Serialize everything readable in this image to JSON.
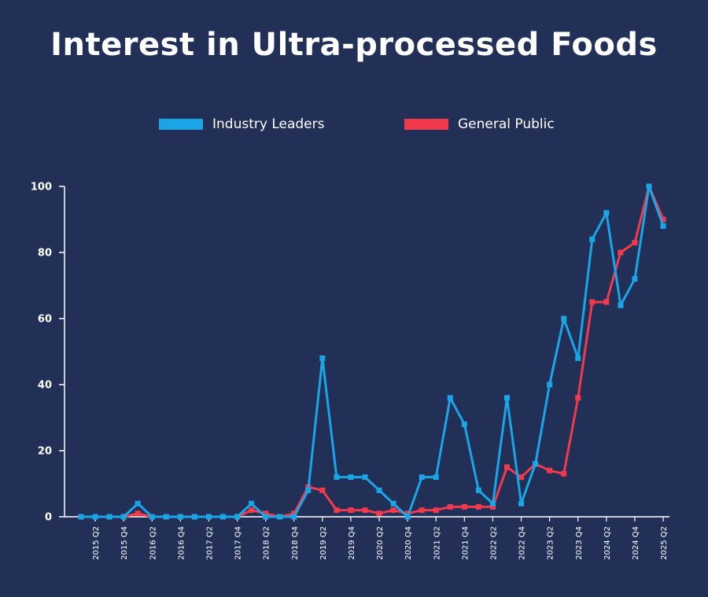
{
  "chart_data": {
    "type": "line",
    "title": "Interest in Ultra-processed Foods",
    "xlabel": "",
    "ylabel": "",
    "ylim": [
      0,
      100
    ],
    "yticks": [
      0,
      20,
      40,
      60,
      80,
      100
    ],
    "grid": false,
    "legend_position": "top",
    "x": [
      "2015 Q1",
      "2015 Q2",
      "2015 Q3",
      "2015 Q4",
      "2016 Q1",
      "2016 Q2",
      "2016 Q3",
      "2016 Q4",
      "2017 Q1",
      "2017 Q2",
      "2017 Q3",
      "2017 Q4",
      "2018 Q1",
      "2018 Q2",
      "2018 Q3",
      "2018 Q4",
      "2019 Q1",
      "2019 Q2",
      "2019 Q3",
      "2019 Q4",
      "2020 Q1",
      "2020 Q2",
      "2020 Q3",
      "2020 Q4",
      "2021 Q1",
      "2021 Q2",
      "2021 Q3",
      "2021 Q4",
      "2022 Q1",
      "2022 Q2",
      "2022 Q3",
      "2022 Q4",
      "2023 Q1",
      "2023 Q2",
      "2023 Q3",
      "2023 Q4",
      "2024 Q1",
      "2024 Q2",
      "2024 Q3",
      "2024 Q4",
      "2025 Q1",
      "2025 Q2"
    ],
    "x_tick_labels": [
      "2015 Q2",
      "2015 Q4",
      "2016 Q2",
      "2016 Q4",
      "2017 Q2",
      "2017 Q4",
      "2018 Q2",
      "2018 Q4",
      "2019 Q2",
      "2019 Q4",
      "2020 Q2",
      "2020 Q4",
      "2021 Q2",
      "2021 Q4",
      "2022 Q2",
      "2022 Q4",
      "2023 Q2",
      "2023 Q4",
      "2024 Q2",
      "2024 Q4",
      "2025 Q2"
    ],
    "series": [
      {
        "name": "Industry Leaders",
        "color": "#1aa6e6",
        "values": [
          0,
          0,
          0,
          0,
          4,
          0,
          0,
          0,
          0,
          0,
          0,
          0,
          4,
          0,
          0,
          0,
          8,
          48,
          12,
          12,
          12,
          8,
          4,
          0,
          12,
          12,
          36,
          28,
          8,
          4,
          36,
          4,
          16,
          40,
          60,
          48,
          84,
          92,
          64,
          72,
          100,
          88
        ]
      },
      {
        "name": "General Public",
        "color": "#f23a4e",
        "values": [
          0,
          0,
          0,
          0,
          1,
          0,
          0,
          0,
          0,
          0,
          0,
          0,
          2,
          1,
          0,
          1,
          9,
          8,
          2,
          2,
          2,
          1,
          2,
          1,
          2,
          2,
          3,
          3,
          3,
          3,
          15,
          12,
          16,
          14,
          13,
          36,
          65,
          65,
          80,
          83,
          100,
          90
        ]
      }
    ]
  }
}
